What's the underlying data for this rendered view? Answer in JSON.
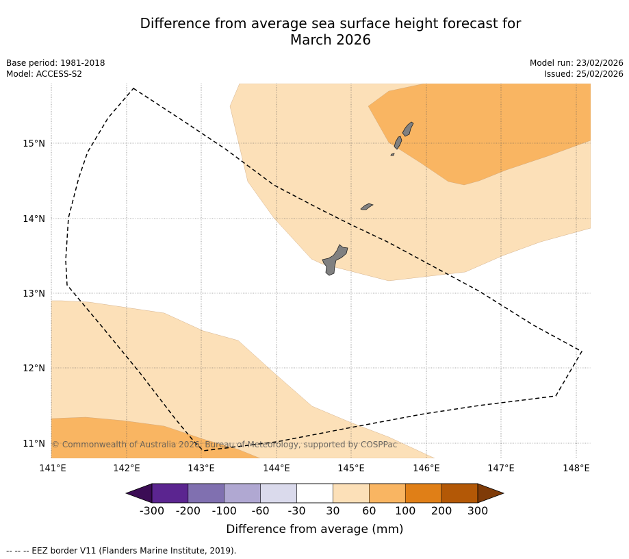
{
  "title": {
    "line1": "Difference from average sea surface height forecast for",
    "line2": "March 2026"
  },
  "meta": {
    "base_period": "Base period: 1981-2018",
    "model": "Model: ACCESS-S2",
    "model_run": "Model run: 23/02/2026",
    "issued": "Issued: 25/02/2026"
  },
  "map": {
    "lon_range": [
      141.0,
      148.2
    ],
    "lat_range": [
      10.8,
      15.8
    ],
    "lat_ticks": [
      15,
      14,
      13,
      12,
      11
    ],
    "lat_labels": [
      "15°N",
      "14°N",
      "13°N",
      "12°N",
      "11°N"
    ],
    "lon_ticks": [
      141,
      142,
      143,
      144,
      145,
      146,
      147,
      148
    ],
    "lon_labels": [
      "141°E",
      "142°E",
      "143°E",
      "144°E",
      "145°E",
      "146°E",
      "147°E",
      "148°E"
    ],
    "copyright": "© Commonwealth of Australia 2026, Bureau of Meteorology, supported by COSPPac"
  },
  "colorbar": {
    "title": "Difference from average (mm)",
    "ticks": [
      "-300",
      "-200",
      "-100",
      "-60",
      "-30",
      "30",
      "60",
      "100",
      "200",
      "300"
    ],
    "colors": [
      "#5b2590",
      "#8070b0",
      "#b0a8d2",
      "#dadaec",
      "#ffffff",
      "#fce0b8",
      "#f9b562",
      "#e07f17",
      "#b35806"
    ],
    "extend_low_color": "#3b0c55",
    "extend_high_color": "#7f3b08"
  },
  "footnote": "--  --  -- EEZ border V11 (Flanders Marine Institute, 2019)."
}
